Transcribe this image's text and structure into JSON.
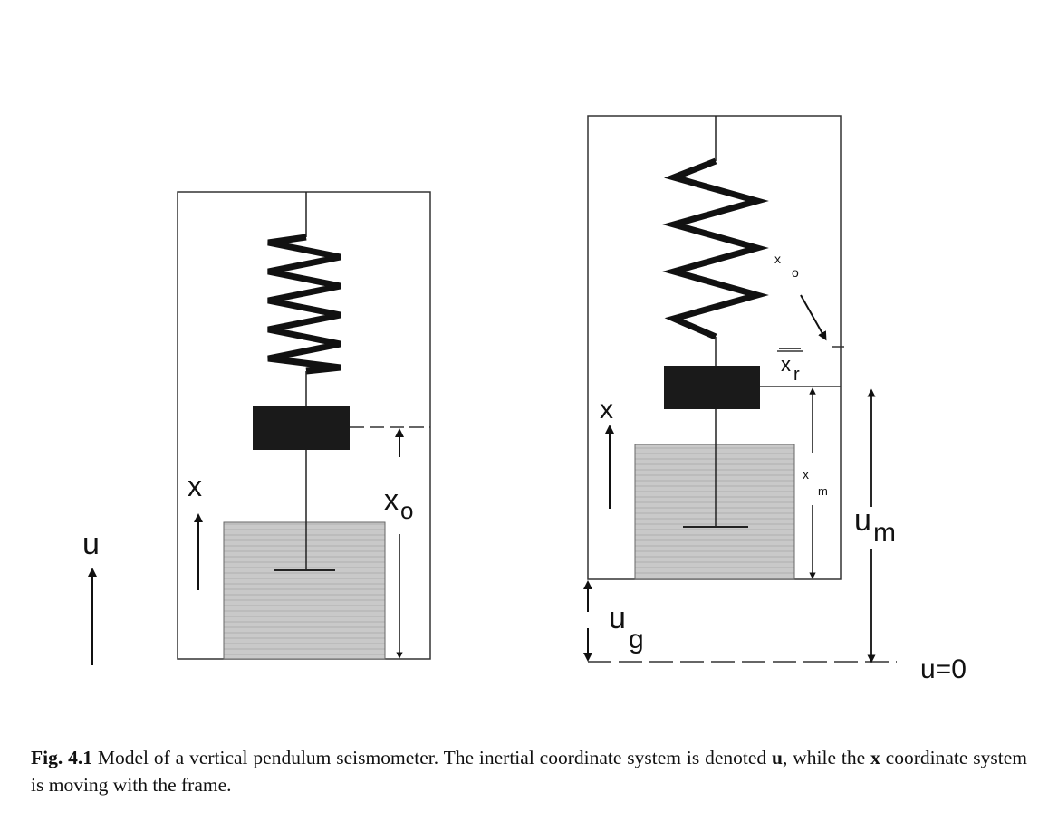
{
  "figure": {
    "left_panel": {
      "label_u": "u",
      "label_x": "x",
      "label_xo_main": "x",
      "label_xo_sub": "o"
    },
    "right_panel": {
      "label_x": "x",
      "label_xo_small_main": "x",
      "label_xo_small_sub": "o",
      "label_xr_main": "x",
      "label_xr_sub": "r",
      "label_xm_small_main": "x",
      "label_xm_small_sub": "m",
      "label_um_main": "u",
      "label_um_sub": "m",
      "label_ug_main": "u",
      "label_ug_sub": "g",
      "label_u0": "u=0"
    }
  },
  "caption": {
    "fig_label": "Fig. 4.1",
    "text1": " Model of a vertical pendulum seismometer. The inertial coordinate system is denoted ",
    "bold_u": "u",
    "text2": ", while the ",
    "bold_x": "x",
    "text3": " coordinate system is moving with the frame."
  }
}
